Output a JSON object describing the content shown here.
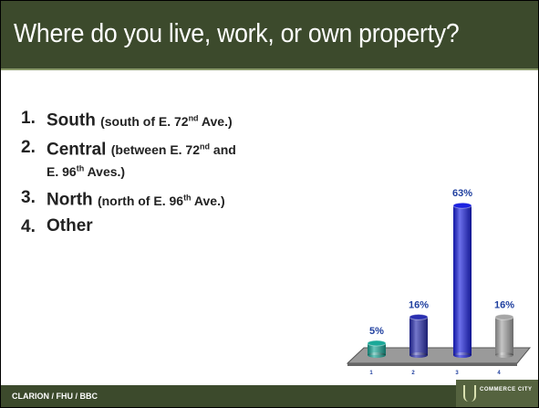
{
  "title": "Where do you live, work, or own property?",
  "options": [
    {
      "number": "1.",
      "name": "South",
      "detail": [
        "(south of E. 72",
        "nd",
        " Ave.)"
      ]
    },
    {
      "number": "2.",
      "name": "Central",
      "detail": [
        "(between E. 72",
        "nd",
        " and E. 96",
        "th",
        " Aves.)"
      ]
    },
    {
      "number": "3.",
      "name": "North",
      "detail": [
        "(north of E. 96",
        "th",
        " Ave.)"
      ]
    },
    {
      "number": "4.",
      "name": "Other"
    }
  ],
  "footer": "CLARION / FHU / BBC",
  "logo": "COMMERCE CITY",
  "chart_data": {
    "type": "bar",
    "categories": [
      "1",
      "2",
      "3",
      "4"
    ],
    "values": [
      5,
      16,
      63,
      16
    ],
    "value_labels": [
      "5%",
      "16%",
      "63%",
      "16%"
    ],
    "colors": [
      "#1aa898",
      "#2a2fb0",
      "#1c22e0",
      "#a6a6a6"
    ]
  }
}
